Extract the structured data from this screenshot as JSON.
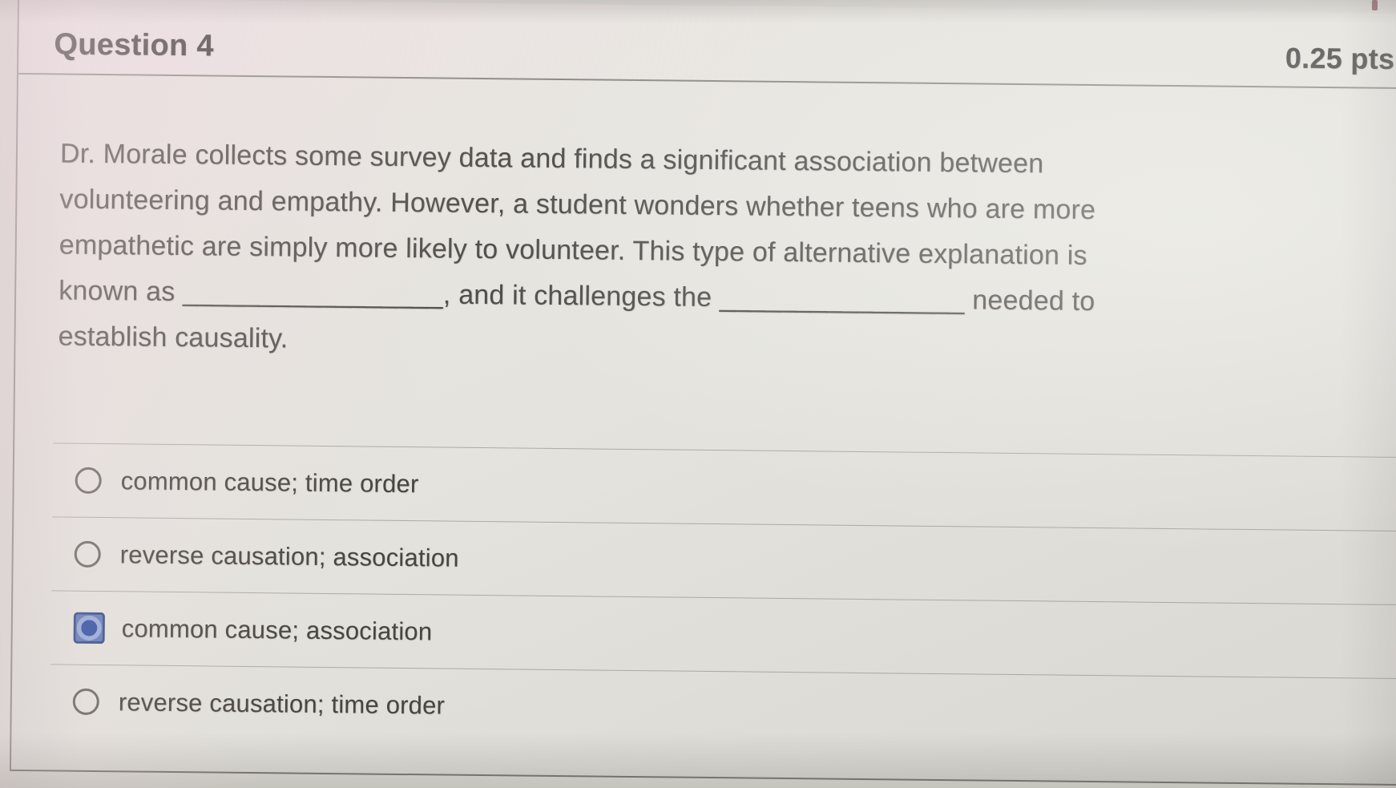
{
  "header": {
    "title": "Question 4",
    "points": "0.25 pts"
  },
  "question": {
    "lines": [
      "Dr. Morale collects some survey data and finds a significant association between",
      "volunteering and empathy. However, a student wonders whether teens who are more",
      "empathetic are simply more likely to volunteer. This type of alternative explanation is",
      "known as _________________, and it challenges the ________________ needed to",
      "establish causality."
    ]
  },
  "options": [
    {
      "label": "common cause; time order",
      "selected": false
    },
    {
      "label": "reverse causation; association",
      "selected": false
    },
    {
      "label": "common cause; association",
      "selected": true
    },
    {
      "label": "reverse causation; time order",
      "selected": false
    }
  ],
  "colors": {
    "selected_radio_fill": "#2b4da1",
    "selected_radio_border": "#2e4a87",
    "unselected_radio_border": "#68665f",
    "divider": "#807e78",
    "text": "#514f4b",
    "card_background": "#e4e3dd"
  }
}
